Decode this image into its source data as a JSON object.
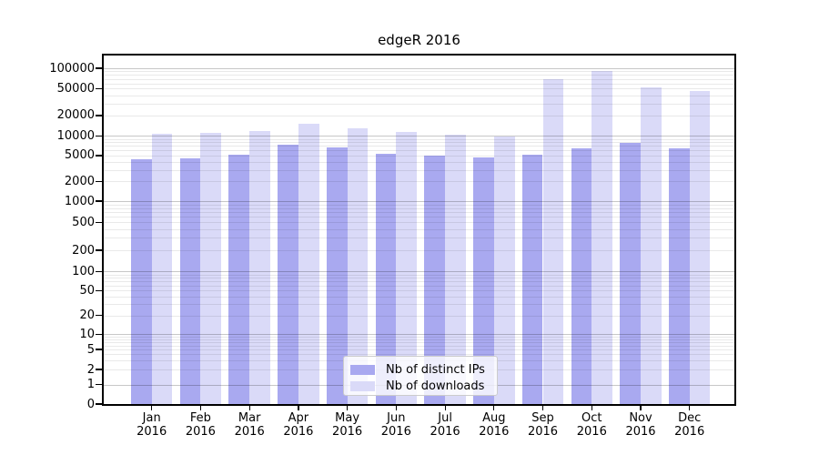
{
  "title": "edgeR 2016",
  "legend": {
    "items": [
      {
        "label": "Nb of distinct IPs",
        "color": "#a9a9f0"
      },
      {
        "label": "Nb of downloads",
        "color": "#dadaf8"
      }
    ]
  },
  "chart_data": {
    "type": "bar",
    "title": "edgeR 2016",
    "yscale": "symlog",
    "grid": "horizontal-major-and-minor",
    "legend_position": "lower center",
    "months": [
      "Jan",
      "Feb",
      "Mar",
      "Apr",
      "May",
      "Jun",
      "Jul",
      "Aug",
      "Sep",
      "Oct",
      "Nov",
      "Dec"
    ],
    "year": "2016",
    "categories": [
      "Jan 2016",
      "Feb 2016",
      "Mar 2016",
      "Apr 2016",
      "May 2016",
      "Jun 2016",
      "Jul 2016",
      "Aug 2016",
      "Sep 2016",
      "Oct 2016",
      "Nov 2016",
      "Dec 2016"
    ],
    "yticks": [
      0,
      1,
      2,
      5,
      10,
      20,
      50,
      100,
      200,
      500,
      1000,
      2000,
      5000,
      10000,
      20000,
      50000,
      100000
    ],
    "ylim": [
      0,
      160000
    ],
    "series": [
      {
        "name": "Nb of distinct IPs",
        "color": "#a9a9f0",
        "values": [
          4400,
          4600,
          5100,
          7400,
          6700,
          5400,
          5000,
          4700,
          5200,
          6400,
          7700,
          6400
        ]
      },
      {
        "name": "Nb of downloads",
        "color": "#dadaf8",
        "values": [
          10900,
          11200,
          11900,
          15200,
          13100,
          11500,
          10300,
          9800,
          68000,
          91500,
          51500,
          45500
        ]
      }
    ]
  }
}
